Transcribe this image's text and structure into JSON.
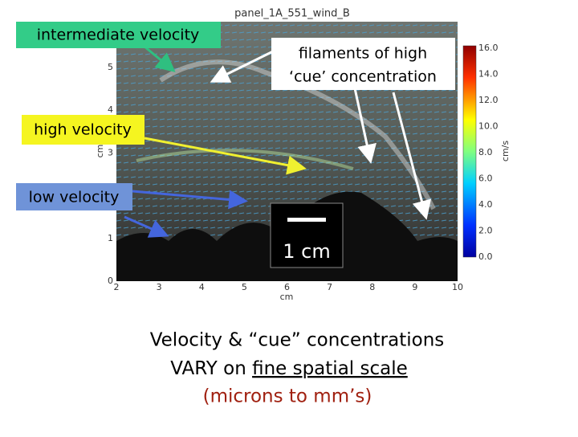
{
  "figure": {
    "title": "panel_1A_551_wind_B",
    "x_label": "cm",
    "y_label": "cm",
    "x_ticks": [
      2,
      3,
      4,
      5,
      6,
      7,
      8,
      9,
      10
    ],
    "y_ticks": [
      0,
      1,
      2,
      3,
      4,
      5
    ],
    "colorbar": {
      "ticks": [
        "0.0",
        "2.0",
        "4.0",
        "6.0",
        "8.0",
        "10.0",
        "12.0",
        "14.0",
        "16.0"
      ],
      "label": "cm/s"
    }
  },
  "annotations": {
    "intermediate": "intermediate velocity",
    "filaments": [
      "filaments of high",
      "‘cue’ concentration"
    ],
    "high": "high velocity",
    "low": "low velocity",
    "scale": "1 cm"
  },
  "caption": {
    "line1": "Velocity & “cue” concentrations",
    "line2_start": "VARY on ",
    "line2_underlined": "fine spatial scale",
    "line3": "(microns to mm’s)"
  }
}
